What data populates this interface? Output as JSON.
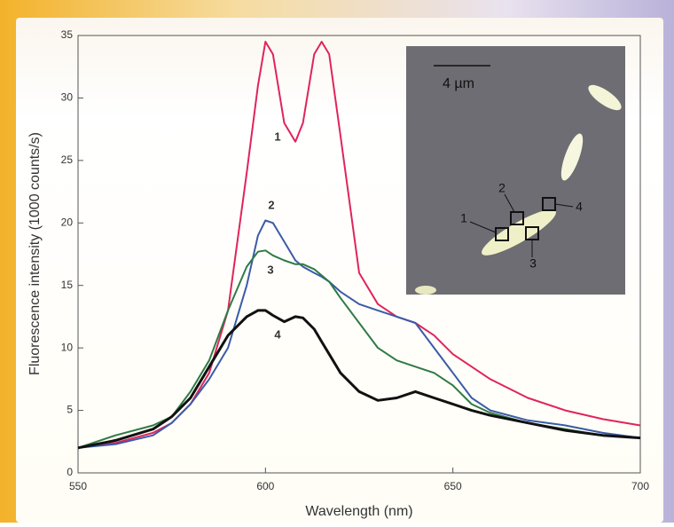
{
  "chart_data": {
    "type": "line",
    "x_label": "Wavelength (nm)",
    "y_label": "Fluorescence intensity (1000 counts/s)",
    "x": [
      550,
      560,
      570,
      575,
      580,
      585,
      590,
      595,
      598,
      600,
      602,
      605,
      608,
      610,
      613,
      615,
      617,
      620,
      625,
      630,
      635,
      640,
      645,
      650,
      655,
      660,
      670,
      680,
      690,
      700
    ],
    "series": [
      {
        "name": "1",
        "color": "#e0245a",
        "values": [
          2,
          2.4,
          3.2,
          4,
          5.5,
          8,
          13,
          24,
          31,
          34.5,
          33.5,
          28,
          26.5,
          28,
          33.5,
          34.5,
          33.5,
          27,
          16,
          13.5,
          12.5,
          12,
          11,
          9.5,
          8.5,
          7.5,
          6,
          5,
          4.3,
          3.8
        ]
      },
      {
        "name": "2",
        "color": "#3a5ba8",
        "values": [
          2,
          2.3,
          3,
          4,
          5.5,
          7.5,
          10,
          15,
          19,
          20.2,
          20,
          18.5,
          17,
          16.5,
          16,
          15.7,
          15.3,
          14.5,
          13.5,
          13,
          12.5,
          12,
          10,
          8,
          6,
          5,
          4.2,
          3.8,
          3.2,
          2.8
        ]
      },
      {
        "name": "3",
        "color": "#2f7a45",
        "values": [
          2,
          3,
          3.8,
          4.5,
          6.5,
          9,
          13,
          16.5,
          17.7,
          17.8,
          17.4,
          17,
          16.7,
          16.7,
          16.3,
          15.8,
          15.3,
          14,
          12,
          10,
          9,
          8.5,
          8,
          7,
          5.5,
          4.8,
          4,
          3.5,
          3,
          2.8
        ]
      },
      {
        "name": "4",
        "color": "#111111",
        "values": [
          2,
          2.6,
          3.5,
          4.5,
          6,
          8.5,
          11,
          12.5,
          13,
          13,
          12.6,
          12.1,
          12.5,
          12.4,
          11.5,
          10.5,
          9.5,
          8,
          6.5,
          5.8,
          6,
          6.5,
          6,
          5.5,
          5,
          4.6,
          4,
          3.4,
          3,
          2.8
        ]
      }
    ],
    "xlim": [
      550,
      700
    ],
    "xticks": [
      550,
      600,
      650,
      700
    ],
    "ylim": [
      0,
      35
    ],
    "yticks": [
      0,
      5,
      10,
      15,
      20,
      25,
      30,
      35
    ],
    "inset": {
      "scale_label": "4 µm",
      "markers": [
        "1",
        "2",
        "3",
        "4"
      ]
    }
  }
}
